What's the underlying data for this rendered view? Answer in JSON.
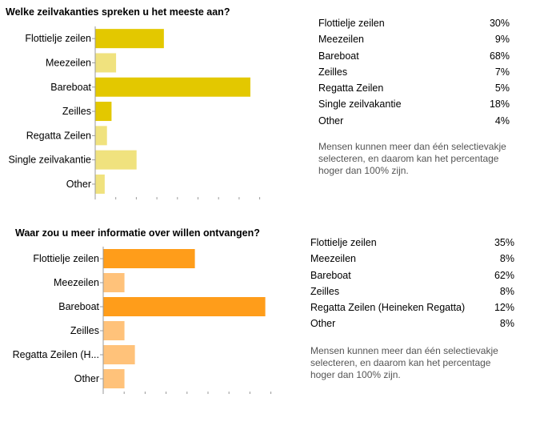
{
  "chart_data": [
    {
      "type": "bar",
      "orientation": "horizontal",
      "title": "Welke zeilvakanties spreken u het meeste aan?",
      "categories": [
        "Flottielje zeilen",
        "Meezeilen",
        "Bareboat",
        "Zeilles",
        "Regatta Zeilen",
        "Single zeilvakantie",
        "Other"
      ],
      "values": [
        30,
        9,
        68,
        7,
        5,
        18,
        4
      ],
      "unit": "%",
      "highlight_color": "#e3c800",
      "light_color": "#f0e27e",
      "highlight_index": [
        0,
        2,
        3
      ],
      "legend": [
        {
          "label": "Flottielje zeilen",
          "pct": "30%"
        },
        {
          "label": "Meezeilen",
          "pct": "9%"
        },
        {
          "label": "Bareboat",
          "pct": "68%"
        },
        {
          "label": "Zeilles",
          "pct": "7%"
        },
        {
          "label": "Regatta Zeilen",
          "pct": "5%"
        },
        {
          "label": "Single zeilvakantie",
          "pct": "18%"
        },
        {
          "label": "Other",
          "pct": "4%"
        }
      ],
      "note": "Mensen kunnen meer dan één selectievakje selecteren, en daarom kan het percentage hoger dan 100% zijn."
    },
    {
      "type": "bar",
      "orientation": "horizontal",
      "title": "Waar zou u meer informatie over willen ontvangen?",
      "categories": [
        "Flottielje zeilen",
        "Meezeilen",
        "Bareboat",
        "Zeilles",
        "Regatta Zeilen (H...",
        "Other"
      ],
      "values": [
        35,
        8,
        62,
        8,
        12,
        8
      ],
      "unit": "%",
      "highlight_color": "#ff9d1a",
      "light_color": "#ffc27a",
      "highlight_index": [
        0,
        2
      ],
      "legend": [
        {
          "label": "Flottielje zeilen",
          "pct": "35%"
        },
        {
          "label": "Meezeilen",
          "pct": "8%"
        },
        {
          "label": "Bareboat",
          "pct": "62%"
        },
        {
          "label": "Zeilles",
          "pct": "8%"
        },
        {
          "label": "Regatta Zeilen (Heineken Regatta)",
          "pct": "12%"
        },
        {
          "label": "Other",
          "pct": "8%"
        }
      ],
      "note": "Mensen kunnen meer dan één selectievakje selecteren, en daarom kan het percentage hoger dan 100% zijn."
    }
  ]
}
